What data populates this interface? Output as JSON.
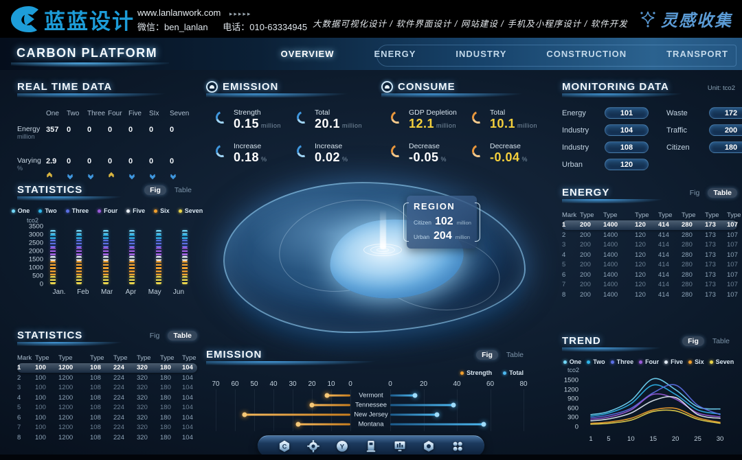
{
  "colors": {
    "accent_blue": "#3f96dd",
    "accent_cyan": "#72d7f7",
    "accent_gold": "#f09f2e",
    "accent_yellow": "#e8d44c",
    "logo_blue": "#1d9dd9",
    "up_arrow": "#d8b440",
    "down_arrow": "#3f96dd"
  },
  "header": {
    "logo": "蓝蓝设计",
    "website": "www.lanlanwork.com",
    "website_arrows": "▸▸▸▸▸",
    "wechat": "微信：ben_lanlan",
    "phone": "电话：010-63334945",
    "services": "大数据可视化设计 / 软件界面设计 / 网站建设 / 手机及小程序设计 / 软件开发",
    "inspiration": "灵感收集"
  },
  "nav": {
    "title": "CARBON PLATFORM",
    "items": [
      "OVERVIEW",
      "ENERGY",
      "INDUSTRY",
      "CONSTRUCTION",
      "TRANSPORT"
    ],
    "active": "OVERVIEW"
  },
  "realtime": {
    "title": "REAL TIME DATA",
    "columns": [
      "One",
      "Two",
      "Three",
      "Four",
      "Five",
      "SIx",
      "Seven"
    ],
    "rows": [
      {
        "label": "Energy",
        "unit": "million",
        "values": [
          "357",
          "0",
          "0",
          "0",
          "0",
          "0",
          "0"
        ]
      },
      {
        "label": "Varying",
        "unit": "%",
        "values": [
          "2.9",
          "0",
          "0",
          "0",
          "0",
          "0",
          "0"
        ]
      }
    ],
    "trend_arrows": [
      "up",
      "down",
      "down",
      "up",
      "down",
      "down",
      "down"
    ]
  },
  "emission_panel": {
    "title": "EMISSION",
    "stats": [
      {
        "label": "Strength",
        "value": "0.15",
        "unit": "million",
        "color": "#ffffff"
      },
      {
        "label": "Total",
        "value": "20.1",
        "unit": "million",
        "color": "#ffffff"
      },
      {
        "label": "Increase",
        "value": "0.18",
        "unit": "%",
        "color": "#ffffff"
      },
      {
        "label": "Increase",
        "value": "0.02",
        "unit": "%",
        "color": "#ffffff"
      }
    ]
  },
  "consume_panel": {
    "title": "CONSUME",
    "stats": [
      {
        "label": "GDP Depletion",
        "value": "12.1",
        "unit": "million",
        "color": "#f5d03c"
      },
      {
        "label": "Total",
        "value": "10.1",
        "unit": "million",
        "color": "#f5d03c"
      },
      {
        "label": "Decrease",
        "value": "-0.05",
        "unit": "%",
        "color": "#ffffff"
      },
      {
        "label": "Decrease",
        "value": "-0.04",
        "unit": "%",
        "color": "#f5d03c"
      }
    ]
  },
  "monitoring": {
    "title": "MONITORING DATA",
    "unit": "Unit: tco2",
    "left": [
      {
        "label": "Energy",
        "value": "101"
      },
      {
        "label": "Industry",
        "value": "104"
      },
      {
        "label": "Industry",
        "value": "108"
      },
      {
        "label": "Urban",
        "value": "120"
      }
    ],
    "right": [
      {
        "label": "Waste",
        "value": "172"
      },
      {
        "label": "Traffic",
        "value": "200"
      },
      {
        "label": "Citizen",
        "value": "180"
      }
    ]
  },
  "region_popup": {
    "title": "REGION",
    "rows": [
      {
        "label": "Citizen",
        "value": "102",
        "unit": "million"
      },
      {
        "label": "Urban",
        "value": "204",
        "unit": "million"
      }
    ]
  },
  "statistics_fig": {
    "title": "STATISTICS",
    "toggle": {
      "fig": "Fig",
      "table": "Table",
      "active": "fig"
    }
  },
  "energy_table": {
    "title": "ENERGY",
    "toggle": {
      "fig": "Fig",
      "table": "Table",
      "active": "table"
    },
    "headers": [
      "Mark",
      "Type",
      "Type",
      "Type",
      "Type",
      "Type",
      "Type",
      "Type"
    ],
    "rows": [
      [
        "1",
        "200",
        "1400",
        "120",
        "414",
        "280",
        "173",
        "107"
      ],
      [
        "2",
        "200",
        "1400",
        "120",
        "414",
        "280",
        "173",
        "107"
      ],
      [
        "3",
        "200",
        "1400",
        "120",
        "414",
        "280",
        "173",
        "107"
      ],
      [
        "4",
        "200",
        "1400",
        "120",
        "414",
        "280",
        "173",
        "107"
      ],
      [
        "5",
        "200",
        "1400",
        "120",
        "414",
        "280",
        "173",
        "107"
      ],
      [
        "6",
        "200",
        "1400",
        "120",
        "414",
        "280",
        "173",
        "107"
      ],
      [
        "7",
        "200",
        "1400",
        "120",
        "414",
        "280",
        "173",
        "107"
      ],
      [
        "8",
        "200",
        "1400",
        "120",
        "414",
        "280",
        "173",
        "107"
      ]
    ]
  },
  "statistics_table": {
    "title": "STATISTICS",
    "toggle": {
      "fig": "Fig",
      "table": "Table",
      "active": "table"
    },
    "headers": [
      "Mark",
      "Type",
      "Type",
      "Type",
      "Type",
      "Type",
      "Type",
      "Type"
    ],
    "rows": [
      [
        "1",
        "100",
        "1200",
        "108",
        "224",
        "320",
        "180",
        "104"
      ],
      [
        "2",
        "100",
        "1200",
        "108",
        "224",
        "320",
        "180",
        "104"
      ],
      [
        "3",
        "100",
        "1200",
        "108",
        "224",
        "320",
        "180",
        "104"
      ],
      [
        "4",
        "100",
        "1200",
        "108",
        "224",
        "320",
        "180",
        "104"
      ],
      [
        "5",
        "100",
        "1200",
        "108",
        "224",
        "320",
        "180",
        "104"
      ],
      [
        "6",
        "100",
        "1200",
        "108",
        "224",
        "320",
        "180",
        "104"
      ],
      [
        "7",
        "100",
        "1200",
        "108",
        "224",
        "320",
        "180",
        "104"
      ],
      [
        "8",
        "100",
        "1200",
        "108",
        "224",
        "320",
        "180",
        "104"
      ]
    ]
  },
  "emission_chart": {
    "title": "EMISSION",
    "toggle": {
      "fig": "Fig",
      "table": "Table",
      "active": "fig"
    }
  },
  "trend": {
    "title": "TREND",
    "toggle": {
      "fig": "Fig",
      "table": "Table",
      "active": "fig"
    }
  },
  "chart_data": [
    {
      "id": "statistics_bars",
      "type": "bar",
      "stacked": true,
      "title": "STATISTICS",
      "ylabel": "tco2",
      "ylim": [
        0,
        3500
      ],
      "yticks": [
        3500,
        3000,
        2500,
        2000,
        1500,
        1000,
        500,
        0
      ],
      "categories": [
        "Jan.",
        "Feb",
        "Mar",
        "Apr",
        "May",
        "Jun"
      ],
      "series": [
        {
          "name": "One",
          "color": "#72d7f7",
          "values": [
            250,
            250,
            250,
            250,
            250,
            250
          ]
        },
        {
          "name": "Two",
          "color": "#2fb4e9",
          "values": [
            350,
            350,
            350,
            350,
            350,
            350
          ]
        },
        {
          "name": "Three",
          "color": "#5b6fe3",
          "values": [
            450,
            450,
            450,
            450,
            450,
            450
          ]
        },
        {
          "name": "Four",
          "color": "#9a5bd9",
          "values": [
            550,
            550,
            550,
            550,
            550,
            550
          ]
        },
        {
          "name": "Five",
          "color": "#e8eef5",
          "values": [
            300,
            300,
            300,
            300,
            300,
            300
          ]
        },
        {
          "name": "Six",
          "color": "#f09f2e",
          "values": [
            900,
            900,
            900,
            900,
            900,
            900
          ]
        },
        {
          "name": "Seven",
          "color": "#e8d44c",
          "values": [
            500,
            500,
            500,
            500,
            500,
            500
          ]
        }
      ],
      "legend": [
        "One",
        "Two",
        "Three",
        "Four",
        "Five",
        "Six",
        "Seven"
      ],
      "legend_position": "top"
    },
    {
      "id": "emission_dumbbell",
      "type": "bar",
      "orientation": "horizontal-dual-axis",
      "title": "EMISSION",
      "categories": [
        "Vermont",
        "Tennessee",
        "New Jersey",
        "Montana"
      ],
      "series": [
        {
          "name": "Strength",
          "color": "#f09f2e",
          "axis": "left",
          "values": [
            12,
            20,
            55,
            27
          ]
        },
        {
          "name": "Total",
          "color": "#4db8f0",
          "axis": "right",
          "values": [
            15,
            38,
            28,
            56
          ]
        }
      ],
      "left_axis_ticks": [
        70,
        60,
        50,
        40,
        30,
        20,
        10,
        0
      ],
      "right_axis_ticks": [
        0,
        20,
        40,
        60,
        80
      ],
      "legend_position": "top-right"
    },
    {
      "id": "trend_lines",
      "type": "line",
      "title": "TREND",
      "ylabel": "tco2",
      "ylim": [
        0,
        1800
      ],
      "yticks": [
        1500,
        1200,
        900,
        600,
        300,
        0
      ],
      "x": [
        1,
        5,
        10,
        15,
        20,
        25,
        30
      ],
      "xticks": [
        1,
        5,
        10,
        15,
        20,
        25,
        30
      ],
      "series": [
        {
          "name": "One",
          "color": "#72d7f7",
          "values": [
            400,
            500,
            850,
            1550,
            1200,
            650,
            580
          ]
        },
        {
          "name": "Two",
          "color": "#2fb4e9",
          "values": [
            350,
            450,
            750,
            1350,
            1050,
            550,
            420
          ]
        },
        {
          "name": "Three",
          "color": "#5b6fe3",
          "values": [
            300,
            380,
            600,
            1100,
            1350,
            700,
            400
          ]
        },
        {
          "name": "Four",
          "color": "#9a5bd9",
          "values": [
            250,
            320,
            550,
            1050,
            900,
            450,
            330
          ]
        },
        {
          "name": "Five",
          "color": "#dfe8f2",
          "values": [
            200,
            260,
            450,
            850,
            950,
            400,
            280
          ]
        },
        {
          "name": "Six",
          "color": "#f09f2e",
          "values": [
            120,
            160,
            280,
            550,
            600,
            300,
            150
          ]
        },
        {
          "name": "Seven",
          "color": "#e8d44c",
          "values": [
            90,
            120,
            220,
            500,
            520,
            250,
            120
          ]
        }
      ],
      "legend": [
        "One",
        "Two",
        "Three",
        "Four",
        "Five",
        "Six",
        "Seven"
      ],
      "legend_position": "top"
    }
  ],
  "dock": {
    "icons": [
      "home-c",
      "gear",
      "valve-y",
      "charging-station",
      "dashboard-monitor",
      "nut",
      "apps-grid"
    ]
  }
}
